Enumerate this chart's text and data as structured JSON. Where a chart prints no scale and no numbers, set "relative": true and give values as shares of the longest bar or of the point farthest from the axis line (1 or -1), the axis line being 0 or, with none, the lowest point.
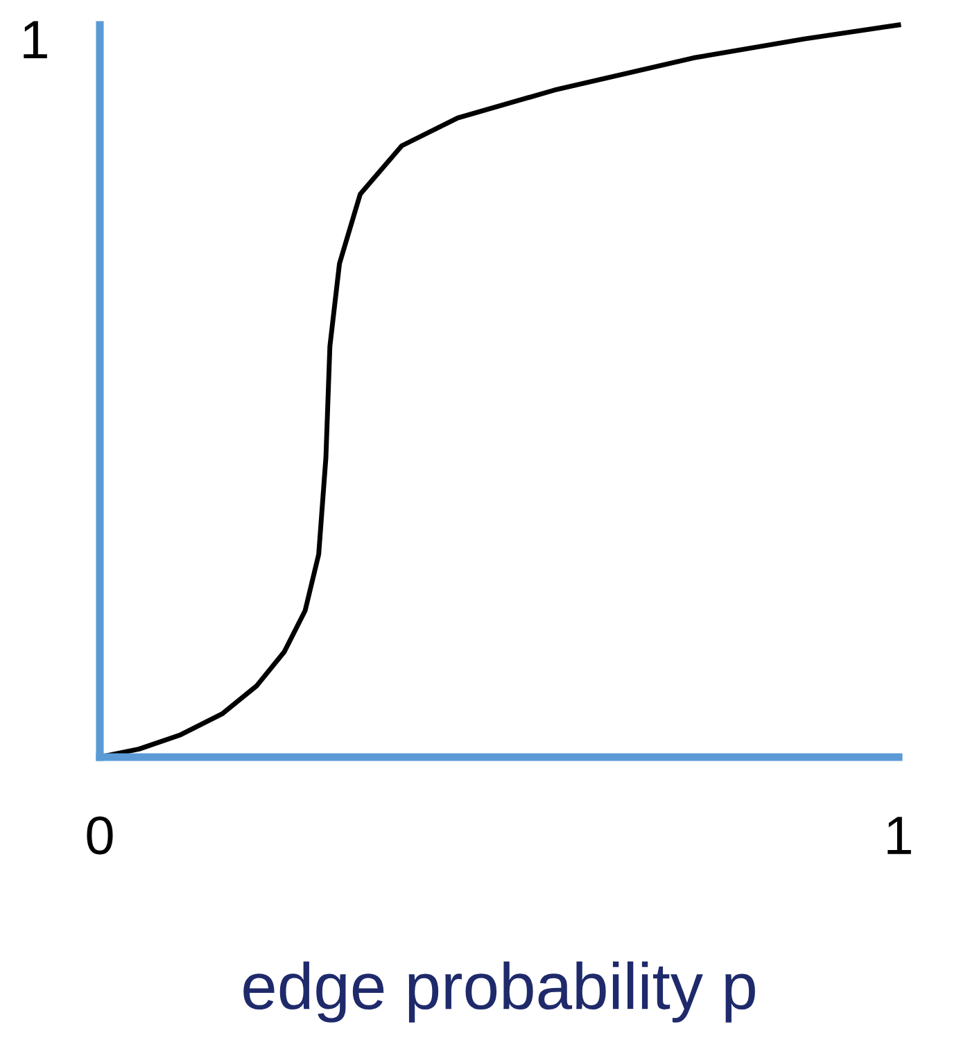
{
  "chart_data": {
    "type": "line",
    "xlabel": "edge probability p",
    "x": [
      0,
      0.049,
      0.1,
      0.153,
      0.196,
      0.231,
      0.257,
      0.274,
      0.283,
      0.288,
      0.3,
      0.326,
      0.378,
      0.448,
      0.569,
      0.743,
      0.882,
      1
    ],
    "series": [
      {
        "color": "#000000",
        "values": [
          0,
          0.011,
          0.03,
          0.059,
          0.097,
          0.144,
          0.2,
          0.277,
          0.409,
          0.561,
          0.674,
          0.769,
          0.835,
          0.873,
          0.911,
          0.955,
          0.981,
          1
        ]
      }
    ],
    "xlim": [
      0,
      1
    ],
    "xticks": [
      0,
      1
    ],
    "relative": true,
    "annotations": [
      "1"
    ],
    "grid": false,
    "legend": false,
    "marker": "none",
    "line_style": "solid"
  }
}
